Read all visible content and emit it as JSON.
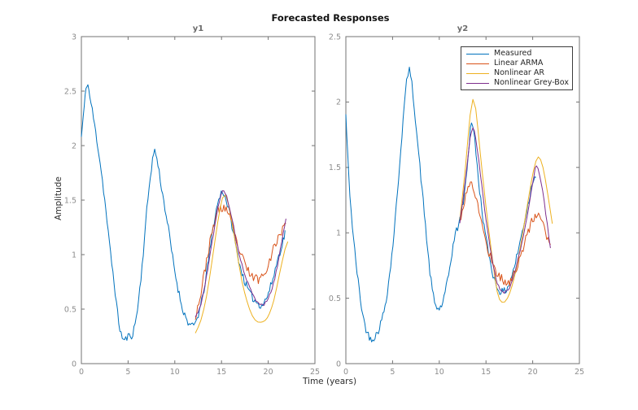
{
  "figure_title": "Forecasted Responses",
  "xlabel": "Time (years)",
  "ylabel": "Amplitude",
  "styles": {
    "background": "#ffffff",
    "axis_line": "#737373",
    "tick_label": "#8c8c8c",
    "axis_label": "#2e2e2e",
    "subplot_title": "#6b6b6b",
    "figure_title_color": "#111111",
    "legend_border": "#3c3c3c",
    "series_blue": "#0072BD",
    "series_orange": "#D95319",
    "series_yellow": "#EDB120",
    "series_purple": "#7E2F8E"
  },
  "legend": {
    "position": "top-right-of-y2",
    "items": [
      {
        "label": "Measured",
        "color": "#0072BD"
      },
      {
        "label": "Linear ARMA",
        "color": "#D95319"
      },
      {
        "label": "Nonlinear AR",
        "color": "#EDB120"
      },
      {
        "label": "Nonlinear Grey-Box",
        "color": "#7E2F8E"
      }
    ]
  },
  "chart_data": {
    "type": "line",
    "title": "Forecasted Responses",
    "xlabel": "Time (years)",
    "ylabel": "Amplitude",
    "grid": false,
    "legend_position": "top-right of second subplot",
    "charts": [
      {
        "title": "y1",
        "xlim": [
          0,
          25
        ],
        "ylim": [
          0,
          3
        ],
        "xticks": [
          0,
          5,
          10,
          15,
          20,
          25
        ],
        "yticks": [
          0,
          0.5,
          1,
          1.5,
          2,
          2.5,
          3
        ],
        "series": [
          {
            "name": "Measured",
            "color": "#0072BD",
            "style": "noisy",
            "noise": 0.035,
            "seed": 11,
            "step": 0.12,
            "x": [
              0,
              0.3,
              0.6,
              0.9,
              1.3,
              2,
              2.5,
              3,
              3.5,
              4,
              4.5,
              5,
              5.5,
              6,
              6.5,
              7,
              7.5,
              7.85,
              8.2,
              8.7,
              9.2,
              10,
              10.7,
              11.3,
              11.9,
              12.4,
              13,
              13.6,
              14.2,
              14.7,
              15.1,
              15.5,
              16,
              16.6,
              17.2,
              18,
              18.7,
              19.3,
              19.9,
              20.5,
              21,
              21.5,
              21.8
            ],
            "y": [
              2.08,
              2.35,
              2.57,
              2.45,
              2.25,
              1.85,
              1.5,
              1.1,
              0.75,
              0.38,
              0.22,
              0.25,
              0.28,
              0.5,
              0.9,
              1.4,
              1.8,
              1.95,
              1.82,
              1.55,
              1.3,
              0.85,
              0.55,
              0.4,
              0.34,
              0.42,
              0.62,
              0.95,
              1.3,
              1.5,
              1.58,
              1.5,
              1.32,
              1.05,
              0.83,
              0.65,
              0.57,
              0.54,
              0.62,
              0.78,
              0.95,
              1.1,
              1.2
            ]
          },
          {
            "name": "Linear ARMA",
            "color": "#D95319",
            "style": "noisy",
            "noise": 0.045,
            "seed": 23,
            "step": 0.13,
            "x": [
              12.2,
              12.8,
              13.4,
              14,
              14.5,
              15,
              15.5,
              16,
              16.5,
              17.2,
              18,
              18.7,
              19.3,
              20,
              20.7,
              21.3,
              21.9
            ],
            "y": [
              0.44,
              0.65,
              0.95,
              1.2,
              1.38,
              1.42,
              1.42,
              1.3,
              1.15,
              0.97,
              0.83,
              0.78,
              0.8,
              0.92,
              1.08,
              1.2,
              1.27
            ]
          },
          {
            "name": "Nonlinear AR",
            "color": "#EDB120",
            "style": "smooth",
            "noise": 0,
            "seed": 3,
            "step": 0.25,
            "x": [
              12.2,
              12.8,
              13.4,
              14,
              14.6,
              15.1,
              15.45,
              16,
              16.6,
              17.2,
              18,
              18.6,
              19.2,
              19.9,
              20.6,
              21.2,
              21.8,
              22.1
            ],
            "y": [
              0.28,
              0.4,
              0.62,
              0.95,
              1.3,
              1.52,
              1.55,
              1.35,
              1.05,
              0.75,
              0.5,
              0.4,
              0.38,
              0.42,
              0.58,
              0.82,
              1.05,
              1.12
            ]
          },
          {
            "name": "Nonlinear Grey-Box",
            "color": "#7E2F8E",
            "style": "slightly-noisy",
            "noise": 0.012,
            "seed": 5,
            "step": 0.15,
            "x": [
              12.2,
              12.8,
              13.4,
              14,
              14.6,
              15.1,
              15.4,
              16,
              16.6,
              17.2,
              18,
              18.7,
              19.4,
              20,
              20.7,
              21.3,
              21.9
            ],
            "y": [
              0.42,
              0.55,
              0.8,
              1.12,
              1.42,
              1.58,
              1.57,
              1.38,
              1.12,
              0.9,
              0.7,
              0.58,
              0.54,
              0.6,
              0.78,
              1.05,
              1.34
            ]
          }
        ]
      },
      {
        "title": "y2",
        "xlim": [
          0,
          25
        ],
        "ylim": [
          0,
          2.5
        ],
        "xticks": [
          0,
          5,
          10,
          15,
          20,
          25
        ],
        "yticks": [
          0,
          0.5,
          1,
          1.5,
          2,
          2.5
        ],
        "series": [
          {
            "name": "Measured",
            "color": "#0072BD",
            "style": "noisy",
            "noise": 0.03,
            "seed": 42,
            "step": 0.12,
            "x": [
              0,
              0.3,
              0.7,
              1.2,
              1.8,
              2.4,
              3,
              3.6,
              4.2,
              4.8,
              5.4,
              6,
              6.5,
              6.8,
              7.2,
              7.8,
              8.4,
              9,
              9.5,
              10,
              10.5,
              11,
              11.6,
              12.2,
              12.7,
              13.1,
              13.45,
              13.8,
              14.2,
              14.8,
              15.4,
              16,
              16.6,
              17.2,
              17.8,
              18.4,
              19,
              19.6,
              20.1,
              20.35
            ],
            "y": [
              1.9,
              1.45,
              1.05,
              0.7,
              0.38,
              0.22,
              0.2,
              0.28,
              0.45,
              0.75,
              1.2,
              1.75,
              2.15,
              2.24,
              2.05,
              1.6,
              1.15,
              0.7,
              0.47,
              0.42,
              0.5,
              0.68,
              0.95,
              1.1,
              1.3,
              1.6,
              1.85,
              1.7,
              1.4,
              1.05,
              0.8,
              0.62,
              0.55,
              0.57,
              0.68,
              0.85,
              1.05,
              1.25,
              1.42,
              1.45
            ]
          },
          {
            "name": "Linear ARMA",
            "color": "#D95319",
            "style": "noisy",
            "noise": 0.035,
            "seed": 17,
            "step": 0.13,
            "x": [
              12.2,
              12.7,
              13.2,
              13.6,
              14,
              14.6,
              15.2,
              16,
              16.8,
              17.4,
              18,
              18.7,
              19.4,
              20,
              20.5,
              21,
              21.5,
              21.9
            ],
            "y": [
              1.08,
              1.25,
              1.37,
              1.35,
              1.25,
              1.05,
              0.88,
              0.72,
              0.64,
              0.62,
              0.68,
              0.82,
              0.98,
              1.1,
              1.14,
              1.08,
              0.98,
              0.9
            ]
          },
          {
            "name": "Nonlinear AR",
            "color": "#EDB120",
            "style": "smooth",
            "noise": 0,
            "seed": 3,
            "step": 0.25,
            "x": [
              12.2,
              12.8,
              13.3,
              13.6,
              13.9,
              14.4,
              15,
              15.6,
              16.2,
              16.7,
              17.3,
              18,
              18.7,
              19.4,
              20.1,
              20.6,
              21.1,
              21.6,
              22.1
            ],
            "y": [
              1.1,
              1.5,
              1.9,
              2.02,
              1.95,
              1.6,
              1.2,
              0.85,
              0.55,
              0.47,
              0.5,
              0.65,
              0.9,
              1.2,
              1.48,
              1.58,
              1.5,
              1.3,
              1.07
            ]
          },
          {
            "name": "Nonlinear Grey-Box",
            "color": "#7E2F8E",
            "style": "slightly-noisy",
            "noise": 0.01,
            "seed": 9,
            "step": 0.15,
            "x": [
              12.2,
              12.8,
              13.3,
              13.6,
              13.9,
              14.4,
              15,
              15.6,
              16.2,
              16.8,
              17.4,
              18,
              18.7,
              19.4,
              20,
              20.4,
              20.9,
              21.4,
              21.9
            ],
            "y": [
              1.08,
              1.4,
              1.72,
              1.8,
              1.72,
              1.45,
              1.1,
              0.82,
              0.62,
              0.55,
              0.57,
              0.68,
              0.88,
              1.12,
              1.38,
              1.51,
              1.38,
              1.15,
              0.88
            ]
          }
        ]
      }
    ]
  }
}
